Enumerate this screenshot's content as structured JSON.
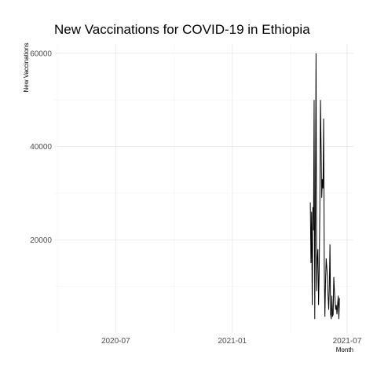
{
  "chart_data": {
    "type": "line",
    "title": "New Vaccinations for COVID-19 in Ethiopia",
    "xlabel": "Month",
    "ylabel": "New Vaccinations",
    "x_ticks": [
      "2020-07",
      "2021-01",
      "2021-07"
    ],
    "y_ticks": [
      20000,
      40000,
      60000
    ],
    "xlim": [
      "2020-03-26",
      "2021-07-11"
    ],
    "ylim": [
      0,
      62000
    ],
    "grid": true,
    "series": [
      {
        "color": "#000000",
        "x": [
          "2021-05-04",
          "2021-05-05",
          "2021-05-06",
          "2021-05-07",
          "2021-05-08",
          "2021-05-09",
          "2021-05-10",
          "2021-05-11",
          "2021-05-12",
          "2021-05-13",
          "2021-05-14",
          "2021-05-15",
          "2021-05-16",
          "2021-05-17",
          "2021-05-18",
          "2021-05-19",
          "2021-05-20",
          "2021-05-21",
          "2021-05-22",
          "2021-05-23",
          "2021-05-24",
          "2021-05-25",
          "2021-05-26",
          "2021-05-27",
          "2021-05-28",
          "2021-05-29",
          "2021-05-30",
          "2021-05-31",
          "2021-06-01",
          "2021-06-02",
          "2021-06-03",
          "2021-06-04",
          "2021-06-05",
          "2021-06-06",
          "2021-06-07",
          "2021-06-08",
          "2021-06-09",
          "2021-06-10",
          "2021-06-11",
          "2021-06-12",
          "2021-06-13",
          "2021-06-14",
          "2021-06-15",
          "2021-06-16",
          "2021-06-17",
          "2021-06-18",
          "2021-06-19"
        ],
        "y": [
          28000,
          15000,
          26000,
          6000,
          27000,
          22000,
          50000,
          3000,
          27000,
          60000,
          9000,
          16000,
          18000,
          6000,
          13000,
          27000,
          50000,
          40000,
          29000,
          33000,
          31000,
          46000,
          14000,
          3500,
          11000,
          16000,
          14000,
          12000,
          8000,
          5000,
          10000,
          19000,
          4000,
          3000,
          8000,
          3500,
          4000,
          12000,
          9000,
          7000,
          5000,
          6000,
          4000,
          6000,
          8000,
          3000,
          7500
        ]
      }
    ]
  }
}
